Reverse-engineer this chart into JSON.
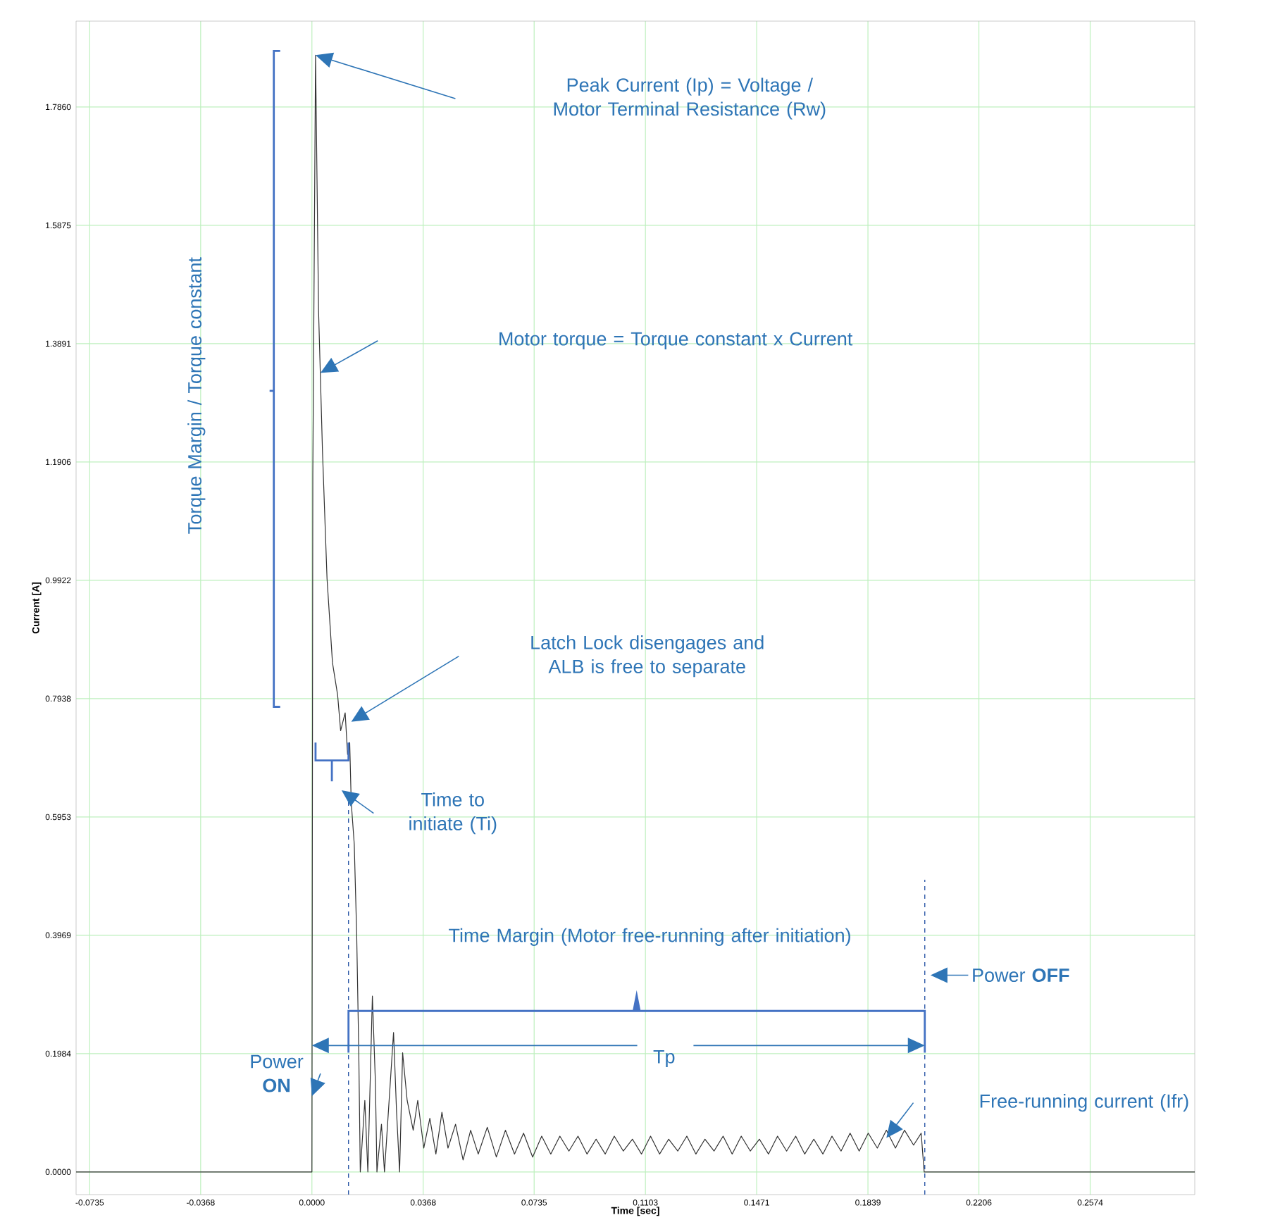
{
  "chart_data": {
    "type": "line",
    "xlabel": "Time [sec]",
    "ylabel": "Current [A]",
    "x": [
      -0.078,
      0,
      0.0003,
      0.0012,
      0.0022,
      0.0035,
      0.005,
      0.0068,
      0.0085,
      0.0095,
      0.011,
      0.0118,
      0.0125,
      0.013,
      0.014,
      0.0148,
      0.0155,
      0.016,
      0.0175,
      0.0185,
      0.02,
      0.021,
      0.0215,
      0.023,
      0.024,
      0.027,
      0.028,
      0.029,
      0.03,
      0.0315,
      0.0335,
      0.035,
      0.037,
      0.039,
      0.041,
      0.043,
      0.045,
      0.0475,
      0.05,
      0.0525,
      0.055,
      0.058,
      0.061,
      0.064,
      0.067,
      0.07,
      0.073,
      0.076,
      0.079,
      0.082,
      0.085,
      0.088,
      0.091,
      0.094,
      0.097,
      0.1,
      0.103,
      0.106,
      0.109,
      0.112,
      0.115,
      0.118,
      0.121,
      0.124,
      0.127,
      0.13,
      0.133,
      0.136,
      0.139,
      0.142,
      0.145,
      0.148,
      0.151,
      0.154,
      0.157,
      0.16,
      0.163,
      0.166,
      0.169,
      0.172,
      0.175,
      0.178,
      0.181,
      0.184,
      0.187,
      0.19,
      0.193,
      0.196,
      0.199,
      0.2015,
      0.2025,
      0.292
    ],
    "values": [
      0,
      0,
      1.17,
      1.873,
      1.444,
      1.208,
      0.995,
      0.854,
      0.8,
      0.74,
      0.77,
      0.7,
      0.72,
      0.62,
      0.55,
      0.4,
      0.2,
      0,
      0.12,
      0,
      0.295,
      0.15,
      0,
      0.08,
      0,
      0.234,
      0.1,
      0,
      0.2,
      0.12,
      0.07,
      0.12,
      0.04,
      0.09,
      0.03,
      0.1,
      0.04,
      0.08,
      0.02,
      0.07,
      0.03,
      0.075,
      0.025,
      0.07,
      0.03,
      0.065,
      0.025,
      0.06,
      0.03,
      0.06,
      0.035,
      0.06,
      0.03,
      0.055,
      0.03,
      0.06,
      0.035,
      0.055,
      0.03,
      0.06,
      0.03,
      0.055,
      0.035,
      0.06,
      0.03,
      0.055,
      0.035,
      0.06,
      0.03,
      0.06,
      0.035,
      0.055,
      0.03,
      0.06,
      0.035,
      0.06,
      0.03,
      0.055,
      0.03,
      0.06,
      0.035,
      0.065,
      0.035,
      0.065,
      0.04,
      0.07,
      0.04,
      0.07,
      0.045,
      0.065,
      0,
      0
    ],
    "color": "#333333",
    "line_style": "solid",
    "grid": true,
    "xlim": [
      -0.078,
      0.292
    ],
    "ylim": [
      -0.038,
      1.93
    ],
    "xticks": [
      -0.0735,
      -0.0368,
      {
        "value": 0,
        "label": "0.0000"
      },
      0.0368,
      0.0735,
      0.1103,
      0.1471,
      0.1839,
      0.2206,
      0.2574
    ],
    "yticks": [
      {
        "value": 0,
        "label": "0.0000"
      },
      0.1984,
      0.3969,
      0.5953,
      0.7938,
      0.9922,
      1.1906,
      1.3891,
      1.5875,
      {
        "value": 1.786,
        "label": "1.7860"
      }
    ],
    "ref_lines": [
      {
        "axis": "x",
        "value": 0.0121,
        "color": "#2e5aa8",
        "line_style": "dashed"
      },
      {
        "axis": "x",
        "value": 0.2027,
        "color": "#2e5aa8",
        "line_style": "dashed"
      }
    ],
    "annotations": [
      "Peak Current (Ip) = Voltage / Motor Terminal Resistance (Rw)",
      "Motor torque = Torque constant x Current",
      "Latch Lock disengages and ALB is free to separate",
      "Time to initiate (Ti)",
      "Time Margin (Motor free-running after initiation)",
      "Power **ON**",
      "Power **OFF**",
      "Tp",
      "Free-running current (Ifr)",
      "Torque Margin / Torque constant"
    ]
  }
}
